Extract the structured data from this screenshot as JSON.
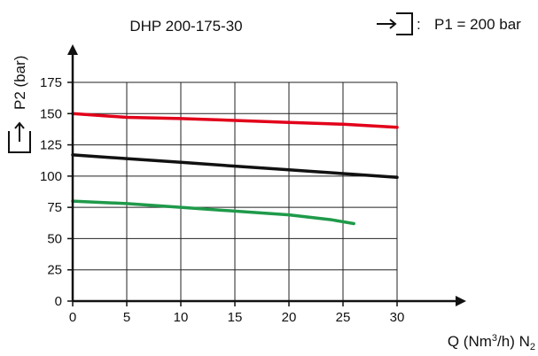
{
  "chart_data": {
    "type": "line",
    "title": "DHP 200-175-30",
    "inlet_condition": "P1 = 200 bar",
    "inlet_separator": ":",
    "ylabel": "P2 (bar)",
    "xlabel_prefix": "Q (Nm",
    "xlabel_sup": "3",
    "xlabel_mid": "/h) N",
    "xlabel_sub": "2",
    "xlim": [
      0,
      30
    ],
    "ylim": [
      0,
      175
    ],
    "x_ticks": [
      0,
      5,
      10,
      15,
      20,
      25,
      30
    ],
    "y_ticks": [
      0,
      25,
      50,
      75,
      100,
      125,
      150,
      175
    ],
    "grid": true,
    "series": [
      {
        "color": "#e2001a",
        "x": [
          0,
          5,
          10,
          15,
          20,
          25,
          30
        ],
        "y": [
          150,
          147,
          146,
          144.5,
          143,
          141.5,
          139
        ]
      },
      {
        "color": "#111111",
        "x": [
          0,
          5,
          10,
          15,
          20,
          25,
          30
        ],
        "y": [
          117,
          114,
          111,
          108,
          105,
          102,
          99
        ]
      },
      {
        "color": "#1f9a4a",
        "x": [
          0,
          5,
          10,
          15,
          20,
          24,
          26
        ],
        "y": [
          80,
          78,
          75,
          72,
          69,
          65,
          62
        ]
      }
    ]
  },
  "colors": {
    "axis": "#111111",
    "grid": "#222222"
  },
  "icons": {
    "inlet": "inlet-arrow-icon",
    "outlet": "outlet-arrow-icon"
  }
}
